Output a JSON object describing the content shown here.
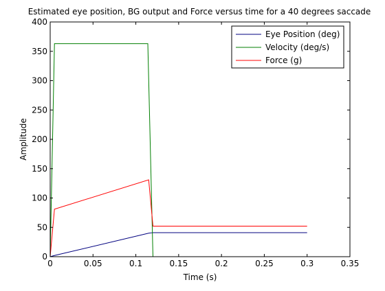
{
  "chart_data": {
    "type": "line",
    "title": "Estimated eye position, BG output and Force versus time for a 40 degrees saccade",
    "xlabel": "Time (s)",
    "ylabel": "Amplitude",
    "xlim": [
      0,
      0.35
    ],
    "ylim": [
      0,
      400
    ],
    "xticks": [
      0,
      0.05,
      0.1,
      0.15,
      0.2,
      0.25,
      0.3,
      0.35
    ],
    "xtick_labels": [
      "0",
      "0.05",
      "0.1",
      "0.15",
      "0.2",
      "0.25",
      "0.3",
      "0.35"
    ],
    "yticks": [
      0,
      50,
      100,
      150,
      200,
      250,
      300,
      350,
      400
    ],
    "ytick_labels": [
      "0",
      "50",
      "100",
      "150",
      "200",
      "250",
      "300",
      "350",
      "400"
    ],
    "grid": false,
    "legend_position": "top-right",
    "series": [
      {
        "name": "Eye Position (deg)",
        "color": "#00007f",
        "x": [
          0,
          0.005,
          0.115,
          0.12,
          0.3
        ],
        "y": [
          0,
          2,
          40,
          41,
          41
        ]
      },
      {
        "name": "Velocity (deg/s)",
        "color": "#007f00",
        "x": [
          0,
          0.005,
          0.114,
          0.12
        ],
        "y": [
          0,
          363,
          363,
          0
        ]
      },
      {
        "name": "Force (g)",
        "color": "#ff0000",
        "x": [
          0,
          0.005,
          0.115,
          0.12,
          0.3
        ],
        "y": [
          0,
          81,
          131,
          52,
          52
        ]
      }
    ]
  }
}
